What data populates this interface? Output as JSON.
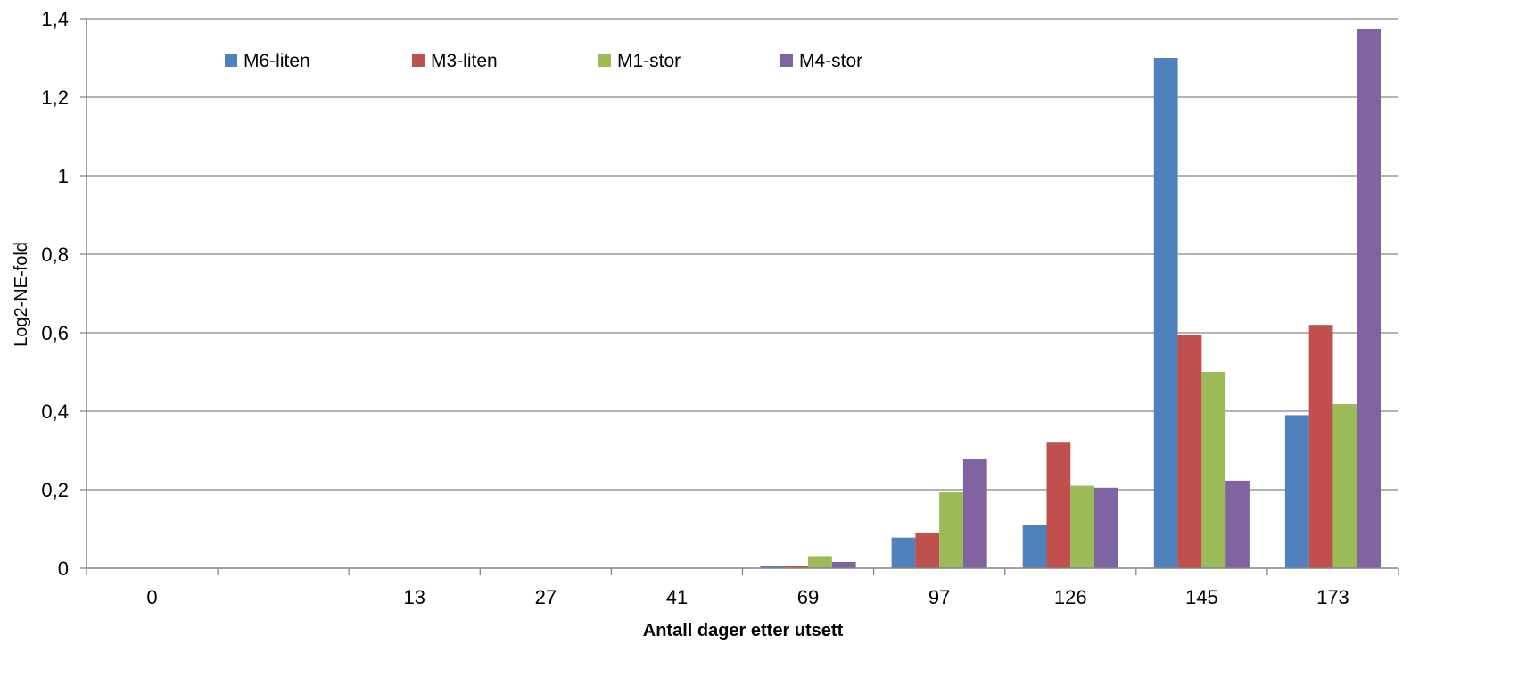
{
  "chart_data": {
    "type": "bar",
    "title": "",
    "xlabel": "Antall dager etter utsett",
    "ylabel": "Log2-NE-fold",
    "ylim": [
      0,
      1.4
    ],
    "yticks": [
      "0",
      "0,2",
      "0,4",
      "0,6",
      "0,8",
      "1",
      "1,2",
      "1,4"
    ],
    "grid": true,
    "legend_position": "top",
    "categories": [
      "0",
      "",
      "13",
      "27",
      "41",
      "69",
      "97",
      "126",
      "145",
      "173"
    ],
    "series": [
      {
        "name": "M6-liten",
        "color": "#4F81BD",
        "values": [
          0,
          0,
          0,
          0,
          0,
          0.005,
          0.078,
          0.11,
          1.3,
          0.39
        ]
      },
      {
        "name": "M3-liten",
        "color": "#C0504D",
        "values": [
          0,
          0,
          0,
          0,
          0,
          0.005,
          0.091,
          0.32,
          0.595,
          0.62
        ]
      },
      {
        "name": "M1-stor",
        "color": "#9BBB59",
        "values": [
          0,
          0,
          0,
          0,
          0,
          0.031,
          0.193,
          0.21,
          0.5,
          0.418
        ]
      },
      {
        "name": "M4-stor",
        "color": "#8064A2",
        "values": [
          0,
          0,
          0,
          0,
          0,
          0.016,
          0.279,
          0.205,
          0.223,
          1.375
        ]
      }
    ]
  }
}
